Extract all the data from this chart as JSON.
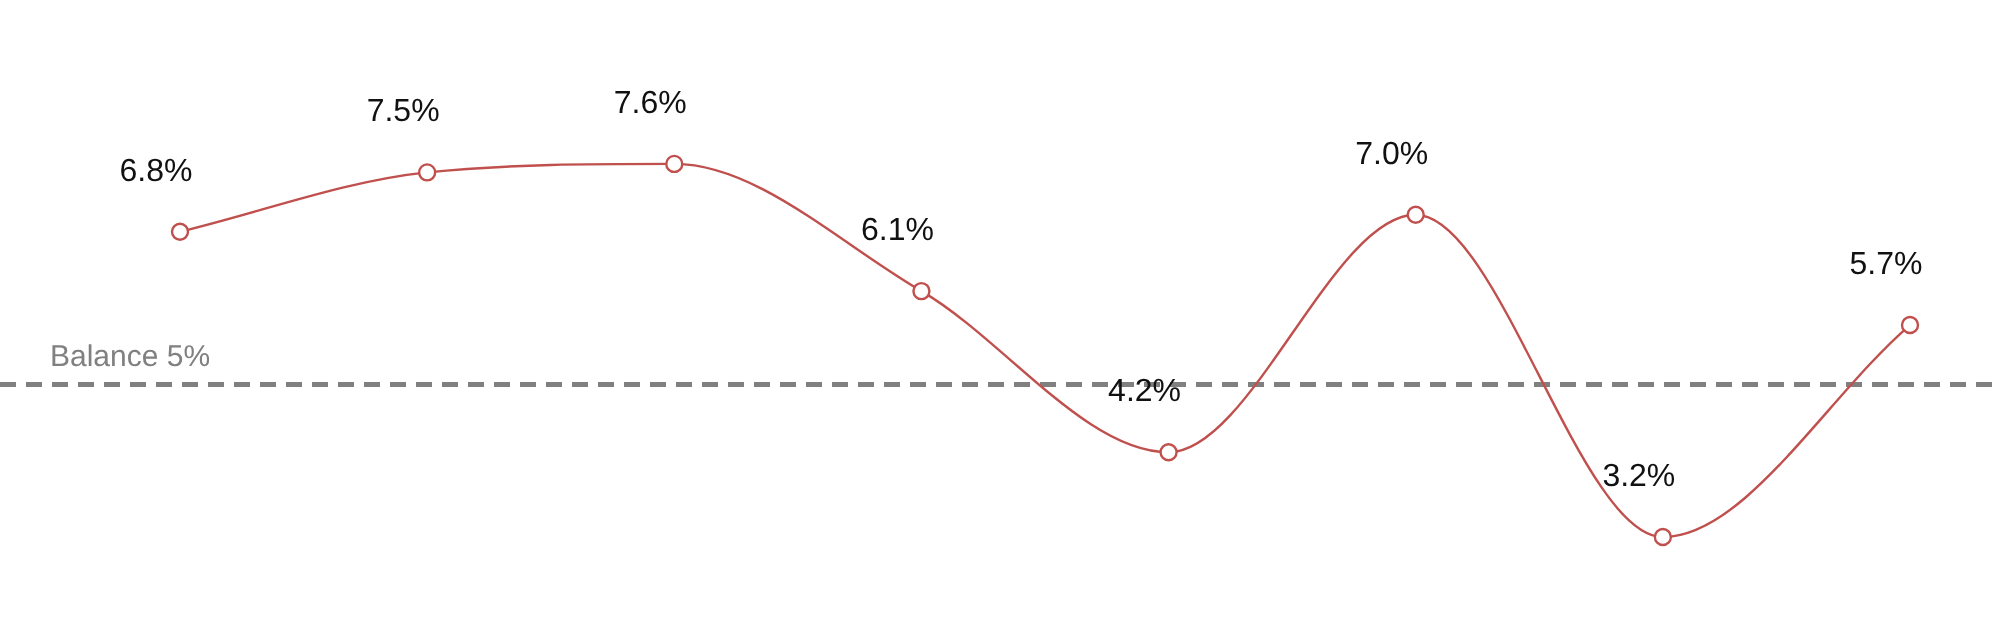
{
  "chart_data": {
    "type": "line",
    "categories": [
      null,
      null,
      null,
      null,
      null,
      null,
      null,
      null
    ],
    "series": [
      {
        "color": "#c0504d",
        "values": [
          6.8,
          7.5,
          7.6,
          6.1,
          4.2,
          7.0,
          3.2,
          5.7
        ],
        "value_labels": [
          "6.8%",
          "7.5%",
          "7.6%",
          "6.1%",
          "4.2%",
          "7.0%",
          "3.2%",
          "5.7%"
        ]
      }
    ],
    "ref_lines": [
      {
        "axis": "y",
        "value": 5,
        "label": "Balance 5%",
        "color": "#808080",
        "line_style": "dashed"
      }
    ],
    "marker": "circle",
    "line_style": "solid"
  }
}
